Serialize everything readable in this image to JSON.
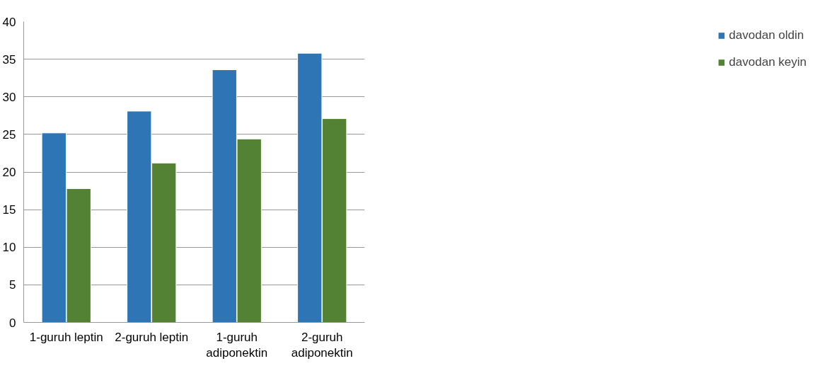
{
  "chart_data": {
    "type": "bar",
    "categories": [
      "1-guruh leptin",
      "2-guruh leptin",
      "1-guruh adiponektin",
      "2-guruh adiponektin"
    ],
    "series": [
      {
        "name": "davodan oldin",
        "color": "#2e75b6",
        "values": [
          25.2,
          28.1,
          33.6,
          35.8
        ]
      },
      {
        "name": "davodan keyin",
        "color": "#548235",
        "values": [
          17.8,
          21.2,
          24.4,
          27.1
        ]
      }
    ],
    "ylim": [
      0,
      40
    ],
    "yticks": [
      0,
      5,
      10,
      15,
      20,
      25,
      30,
      35,
      40
    ],
    "grid": "y",
    "legend": "right"
  }
}
